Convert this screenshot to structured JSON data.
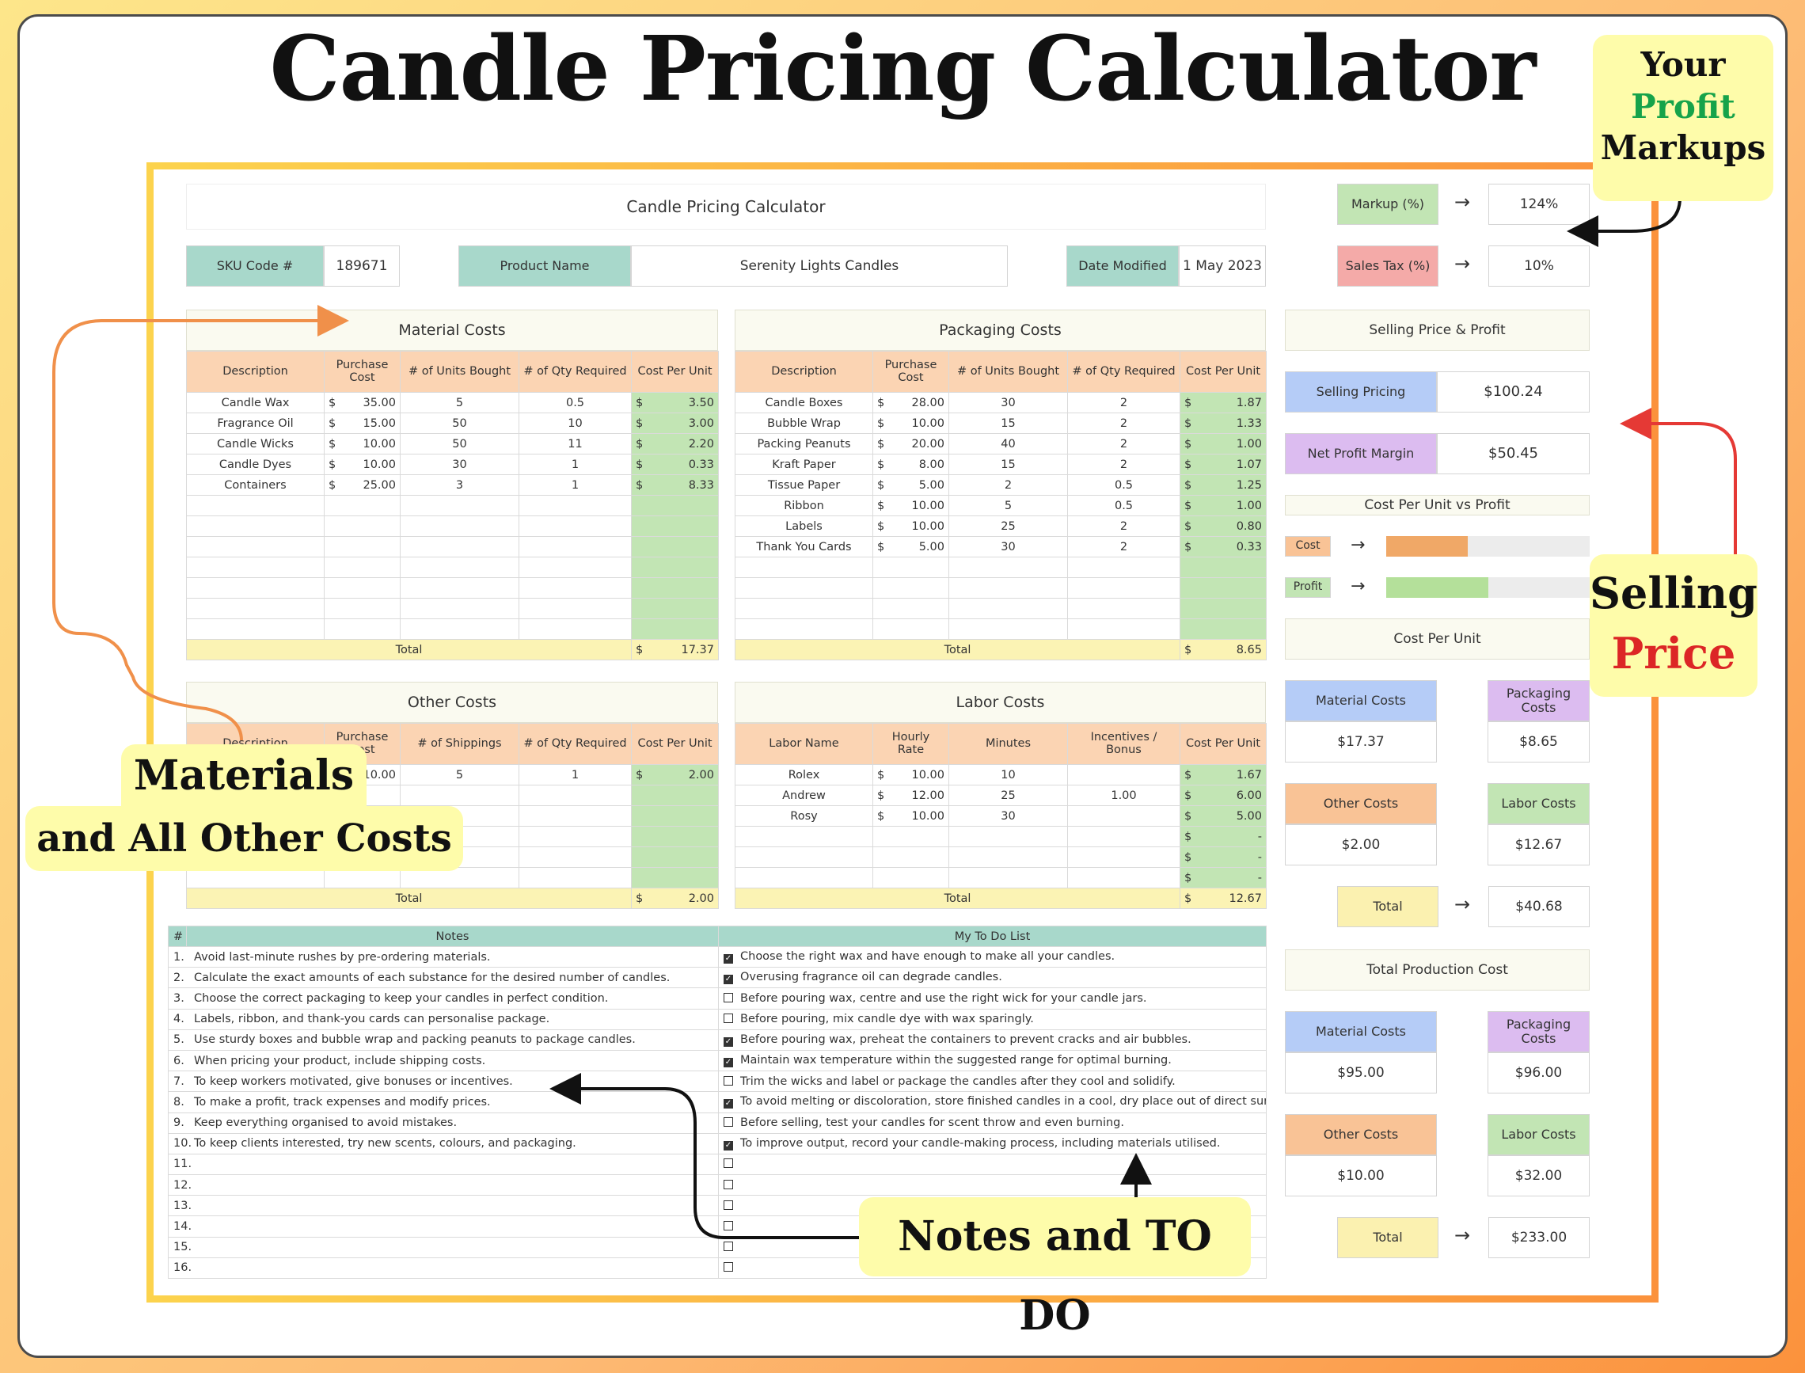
{
  "page_title": "Candle Pricing Calculator",
  "sheet_title": "Candle Pricing Calculator",
  "sku": {
    "label": "SKU Code #",
    "value": "189671"
  },
  "product": {
    "label": "Product Name",
    "value": "Serenity Lights Candles"
  },
  "date": {
    "label": "Date Modified",
    "value": "1 May 2023"
  },
  "markup": {
    "label": "Markup (%)",
    "value": "124%"
  },
  "sales_tax": {
    "label": "Sales Tax (%)",
    "value": "10%"
  },
  "arrow": "→",
  "material": {
    "title": "Material Costs",
    "headers": [
      "Description",
      "Purchase Cost",
      "# of Units Bought",
      "# of Qty Required",
      "Cost Per Unit"
    ],
    "rows": [
      {
        "desc": "Candle Wax",
        "cur": "$",
        "cost": "35.00",
        "units": "5",
        "qty": "0.5",
        "cpu_cur": "$",
        "cpu": "3.50"
      },
      {
        "desc": "Fragrance Oil",
        "cur": "$",
        "cost": "15.00",
        "units": "50",
        "qty": "10",
        "cpu_cur": "$",
        "cpu": "3.00"
      },
      {
        "desc": "Candle Wicks",
        "cur": "$",
        "cost": "10.00",
        "units": "50",
        "qty": "11",
        "cpu_cur": "$",
        "cpu": "2.20"
      },
      {
        "desc": "Candle Dyes",
        "cur": "$",
        "cost": "10.00",
        "units": "30",
        "qty": "1",
        "cpu_cur": "$",
        "cpu": "0.33"
      },
      {
        "desc": "Containers",
        "cur": "$",
        "cost": "25.00",
        "units": "3",
        "qty": "1",
        "cpu_cur": "$",
        "cpu": "8.33"
      },
      {},
      {},
      {},
      {},
      {},
      {},
      {}
    ],
    "total_label": "Total",
    "total_cur": "$",
    "total": "17.37"
  },
  "packaging": {
    "title": "Packaging Costs",
    "headers": [
      "Description",
      "Purchase Cost",
      "# of Units Bought",
      "# of Qty Required",
      "Cost Per Unit"
    ],
    "rows": [
      {
        "desc": "Candle Boxes",
        "cur": "$",
        "cost": "28.00",
        "units": "30",
        "qty": "2",
        "cpu_cur": "$",
        "cpu": "1.87"
      },
      {
        "desc": "Bubble Wrap",
        "cur": "$",
        "cost": "10.00",
        "units": "15",
        "qty": "2",
        "cpu_cur": "$",
        "cpu": "1.33"
      },
      {
        "desc": "Packing Peanuts",
        "cur": "$",
        "cost": "20.00",
        "units": "40",
        "qty": "2",
        "cpu_cur": "$",
        "cpu": "1.00"
      },
      {
        "desc": "Kraft Paper",
        "cur": "$",
        "cost": "8.00",
        "units": "15",
        "qty": "2",
        "cpu_cur": "$",
        "cpu": "1.07"
      },
      {
        "desc": "Tissue Paper",
        "cur": "$",
        "cost": "5.00",
        "units": "2",
        "qty": "0.5",
        "cpu_cur": "$",
        "cpu": "1.25"
      },
      {
        "desc": "Ribbon",
        "cur": "$",
        "cost": "10.00",
        "units": "5",
        "qty": "0.5",
        "cpu_cur": "$",
        "cpu": "1.00"
      },
      {
        "desc": "Labels",
        "cur": "$",
        "cost": "10.00",
        "units": "25",
        "qty": "2",
        "cpu_cur": "$",
        "cpu": "0.80"
      },
      {
        "desc": "Thank You Cards",
        "cur": "$",
        "cost": "5.00",
        "units": "30",
        "qty": "2",
        "cpu_cur": "$",
        "cpu": "0.33"
      },
      {},
      {},
      {},
      {}
    ],
    "total_label": "Total",
    "total_cur": "$",
    "total": "8.65"
  },
  "other": {
    "title": "Other Costs",
    "headers": [
      "Description",
      "Purchase Cost",
      "# of Shippings",
      "# of Qty Required",
      "Cost Per Unit"
    ],
    "rows": [
      {
        "desc": "",
        "cur": "",
        "cost": "10.00",
        "units": "5",
        "qty": "1",
        "cpu_cur": "$",
        "cpu": "2.00"
      },
      {},
      {},
      {},
      {},
      {}
    ],
    "total_label": "Total",
    "total_cur": "$",
    "total": "2.00"
  },
  "labor": {
    "title": "Labor Costs",
    "headers": [
      "Labor Name",
      "Hourly Rate",
      "Minutes",
      "Incentives / Bonus",
      "Cost Per Unit"
    ],
    "rows": [
      {
        "desc": "Rolex",
        "cur": "$",
        "cost": "10.00",
        "units": "10",
        "qty": "",
        "cpu_cur": "$",
        "cpu": "1.67"
      },
      {
        "desc": "Andrew",
        "cur": "$",
        "cost": "12.00",
        "units": "25",
        "qty": "1.00",
        "cpu_cur": "$",
        "cpu": "6.00"
      },
      {
        "desc": "Rosy",
        "cur": "$",
        "cost": "10.00",
        "units": "30",
        "qty": "",
        "cpu_cur": "$",
        "cpu": "5.00"
      },
      {
        "cpu_cur": "$",
        "cpu": "-"
      },
      {
        "cpu_cur": "$",
        "cpu": "-"
      },
      {
        "cpu_cur": "$",
        "cpu": "-"
      }
    ],
    "total_label": "Total",
    "total_cur": "$",
    "total": "12.67"
  },
  "notes": {
    "hash": "#",
    "notes_header": "Notes",
    "todo_header": "My To Do List",
    "rows": [
      {
        "n": "1.",
        "note": "Avoid last-minute rushes by pre-ordering materials.",
        "checked": true,
        "todo": "Choose the right wax and have enough to make all your candles."
      },
      {
        "n": "2.",
        "note": "Calculate the exact amounts of each substance for the desired number of candles.",
        "checked": true,
        "todo": "Overusing fragrance oil can degrade candles."
      },
      {
        "n": "3.",
        "note": "Choose the correct packaging to keep your candles in perfect condition.",
        "checked": false,
        "todo": "Before pouring wax, centre and use the right wick for your candle jars."
      },
      {
        "n": "4.",
        "note": "Labels, ribbon, and thank-you cards can personalise package.",
        "checked": false,
        "todo": "Before pouring, mix candle dye with wax sparingly."
      },
      {
        "n": "5.",
        "note": "Use sturdy boxes and bubble wrap and packing peanuts to package candles.",
        "checked": true,
        "todo": "Before pouring wax, preheat the containers to prevent cracks and air bubbles."
      },
      {
        "n": "6.",
        "note": "When pricing your product, include shipping costs.",
        "checked": true,
        "todo": "Maintain wax temperature within the suggested range for optimal burning."
      },
      {
        "n": "7.",
        "note": "To keep workers motivated, give bonuses or incentives.",
        "checked": false,
        "todo": "Trim the wicks and label or package the candles after they cool and solidify."
      },
      {
        "n": "8.",
        "note": "To make a profit, track expenses and modify prices.",
        "checked": true,
        "todo": "To avoid melting or discoloration, store finished candles in a cool, dry place out of direct sunlight"
      },
      {
        "n": "9.",
        "note": "Keep everything organised to avoid mistakes.",
        "checked": false,
        "todo": "Before selling, test your candles for scent throw and even burning."
      },
      {
        "n": "10.",
        "note": "To keep clients interested, try new scents, colours, and packaging.",
        "checked": true,
        "todo": "To improve output, record your candle-making process, including materials utilised."
      },
      {
        "n": "11.",
        "note": "",
        "checked": false,
        "todo": ""
      },
      {
        "n": "12.",
        "note": "",
        "checked": false,
        "todo": ""
      },
      {
        "n": "13.",
        "note": "",
        "checked": false,
        "todo": ""
      },
      {
        "n": "14.",
        "note": "",
        "checked": false,
        "todo": ""
      },
      {
        "n": "15.",
        "note": "",
        "checked": false,
        "todo": ""
      },
      {
        "n": "16.",
        "note": "",
        "checked": false,
        "todo": ""
      }
    ]
  },
  "selling": {
    "title": "Selling Price & Profit",
    "price_label": "Selling Pricing",
    "price": "$100.24",
    "margin_label": "Net Profit Margin",
    "margin": "$50.45"
  },
  "cpu_vs_profit": {
    "title": "Cost Per Unit vs Profit",
    "cost_label": "Cost",
    "cost_fraction": 0.4,
    "profit_label": "Profit",
    "profit_fraction": 0.5
  },
  "cost_per_unit": {
    "title": "Cost Per Unit",
    "material_label": "Material Costs",
    "material": "$17.37",
    "packaging_label": "Packaging Costs",
    "packaging": "$8.65",
    "other_label": "Other Costs",
    "other": "$2.00",
    "labor_label": "Labor Costs",
    "labor": "$12.67",
    "total_label": "Total",
    "total": "$40.68"
  },
  "total_production": {
    "title": "Total Production Cost",
    "material_label": "Material Costs",
    "material": "$95.00",
    "packaging_label": "Packaging Costs",
    "packaging": "$96.00",
    "other_label": "Other Costs",
    "other": "$10.00",
    "labor_label": "Labor Costs",
    "labor": "$32.00",
    "total_label": "Total",
    "total": "$233.00"
  },
  "callouts": {
    "profit_line1": "Your",
    "profit_line2": "Profit",
    "profit_line3": "Markups",
    "selling_line1": "Selling",
    "selling_line2": "Price",
    "materials_line1": "Materials",
    "materials_line2": "and All Other Costs",
    "notes": "Notes and TO DO"
  },
  "colors": {
    "teal_label": "#a8d8cb",
    "green_label": "#c2e5b4",
    "pink_label": "#f4aaa8",
    "blue_label": "#b5ccf7",
    "purple_label": "#dcbcf0",
    "orange_label": "#f9c396",
    "callout_bg": "#fefcaa",
    "profit_green": "#16a34a",
    "price_red": "#dc2626",
    "cost_bar": "#f0a867",
    "profit_bar": "#b4e09a"
  }
}
